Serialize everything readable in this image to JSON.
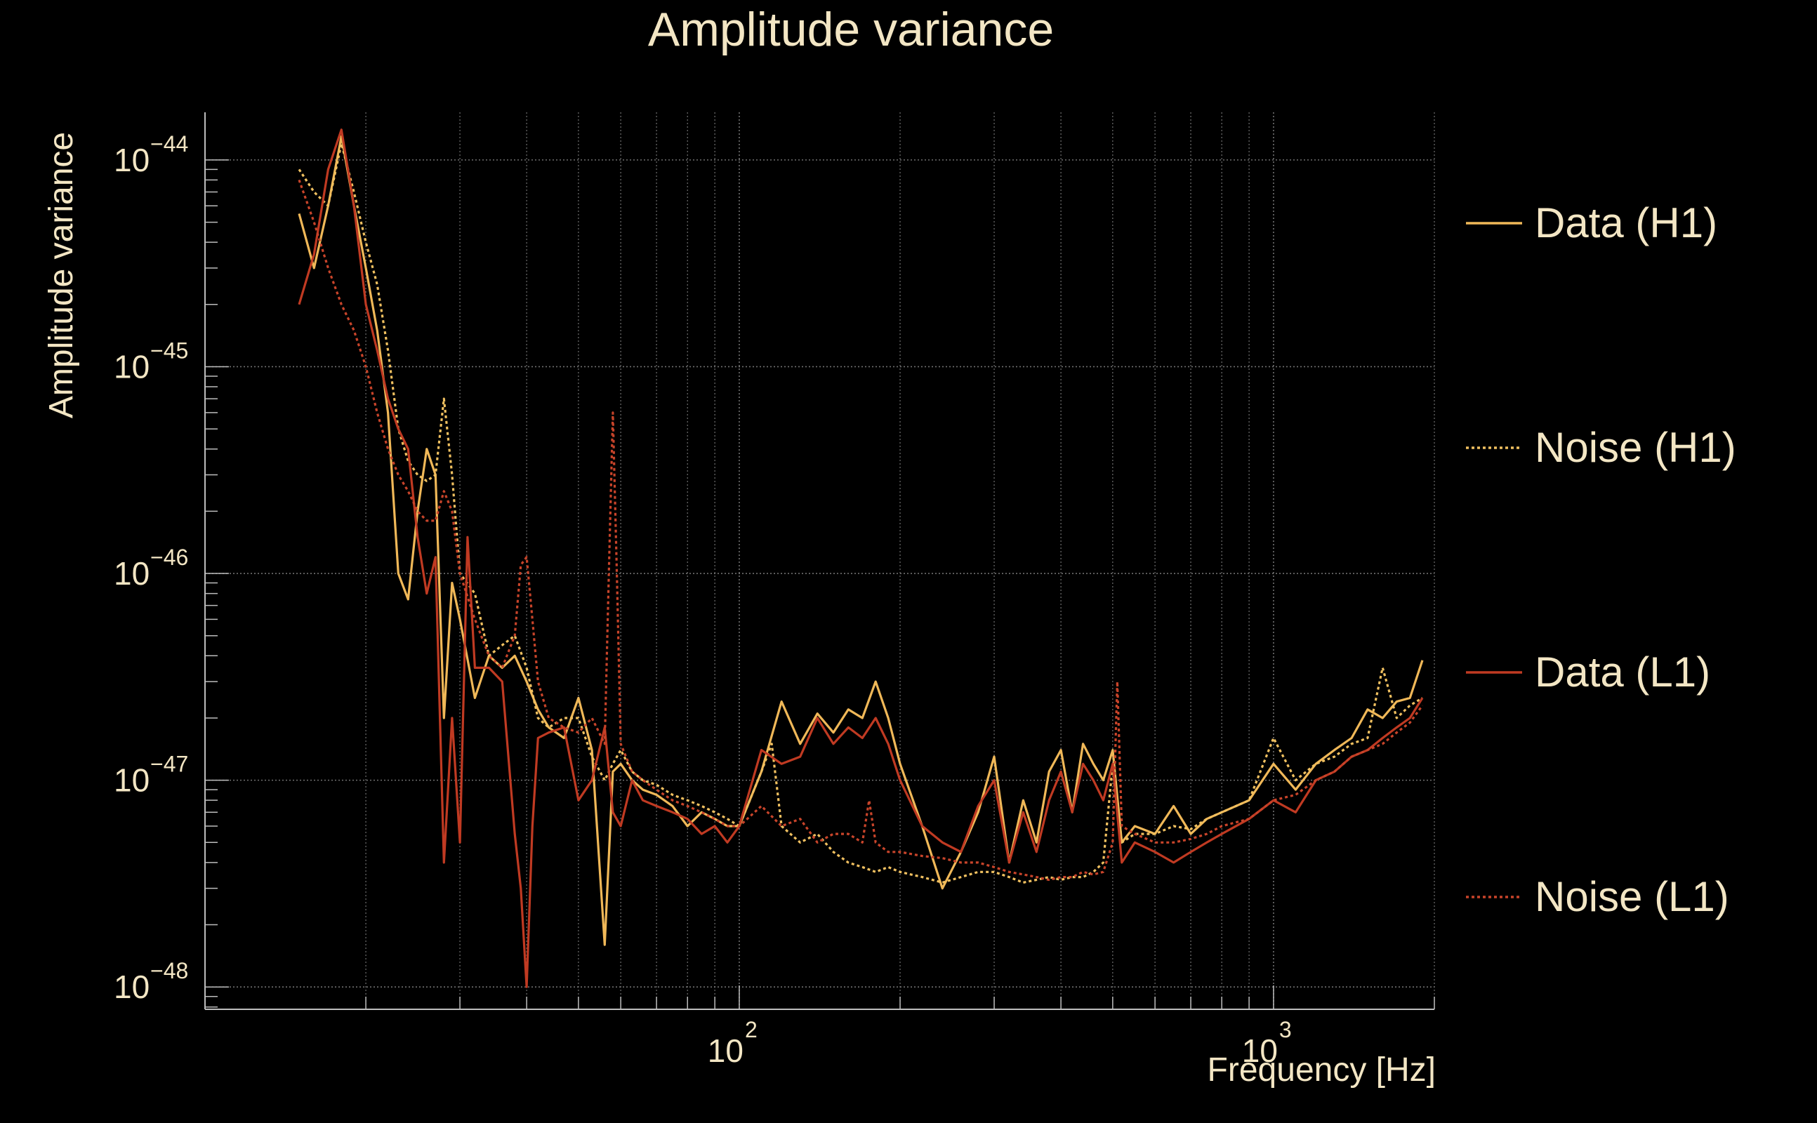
{
  "chart_data": {
    "type": "line",
    "title": "Amplitude variance",
    "xlabel": "Frequency [Hz]",
    "ylabel": "Amplitude variance",
    "x_scale": "log",
    "y_scale": "log",
    "xlim": [
      10,
      2000
    ],
    "ylim": [
      7.8e-49,
      1.7e-44
    ],
    "grid": true,
    "legend_placement": "right",
    "x_major_ticks": [
      {
        "value": 100,
        "base": "10",
        "exp": "2"
      },
      {
        "value": 1000,
        "base": "10",
        "exp": "3"
      }
    ],
    "y_major_ticks": [
      {
        "value": 1e-44,
        "base": "10",
        "exp": "−44"
      },
      {
        "value": 1e-45,
        "base": "10",
        "exp": "−45"
      },
      {
        "value": 1e-46,
        "base": "10",
        "exp": "−46"
      },
      {
        "value": 1e-47,
        "base": "10",
        "exp": "−47"
      },
      {
        "value": 1e-48,
        "base": "10",
        "exp": "−48"
      }
    ],
    "colors": {
      "background": "#000000",
      "text": "#f3e6c4",
      "grid": "#8c8c8c",
      "axis": "#bdbdbd"
    },
    "series": [
      {
        "name": "Data (H1)",
        "color": "#f0b858",
        "style": "solid",
        "x": [
          15,
          16,
          17,
          18,
          19,
          20,
          21,
          22,
          23,
          24,
          25,
          26,
          27,
          28,
          29,
          30,
          32,
          34,
          36,
          38,
          40,
          42,
          44,
          47,
          50,
          53,
          56,
          58,
          60,
          63,
          66,
          70,
          75,
          80,
          85,
          90,
          95,
          100,
          110,
          120,
          130,
          140,
          150,
          160,
          170,
          180,
          190,
          200,
          220,
          240,
          260,
          280,
          300,
          320,
          340,
          360,
          380,
          400,
          420,
          440,
          460,
          480,
          500,
          520,
          550,
          600,
          650,
          700,
          750,
          800,
          900,
          1000,
          1100,
          1200,
          1300,
          1400,
          1500,
          1600,
          1700,
          1800,
          1900
        ],
        "y": [
          5.5e-45,
          3e-45,
          6e-45,
          1.3e-44,
          6e-45,
          3e-45,
          1.5e-45,
          6e-46,
          1e-46,
          7.5e-47,
          2e-46,
          4e-46,
          3e-46,
          2e-47,
          9e-47,
          6e-47,
          2.5e-47,
          4e-47,
          3.5e-47,
          4e-47,
          3e-47,
          2.2e-47,
          1.8e-47,
          1.6e-47,
          2.5e-47,
          1.4e-47,
          1.6e-48,
          1.1e-47,
          1.2e-47,
          1e-47,
          9e-48,
          8.5e-48,
          7.5e-48,
          6e-48,
          7e-48,
          6.5e-48,
          6e-48,
          6e-48,
          1.1e-47,
          2.4e-47,
          1.5e-47,
          2.1e-47,
          1.7e-47,
          2.2e-47,
          2e-47,
          3e-47,
          2e-47,
          1.2e-47,
          6e-48,
          3e-48,
          4.5e-48,
          7e-48,
          1.3e-47,
          4e-48,
          8e-48,
          5e-48,
          1.1e-47,
          1.4e-47,
          7e-48,
          1.5e-47,
          1.2e-47,
          1e-47,
          1.4e-47,
          5e-48,
          6e-48,
          5.5e-48,
          7.5e-48,
          5.5e-48,
          6.5e-48,
          7e-48,
          8e-48,
          1.2e-47,
          9e-48,
          1.2e-47,
          1.4e-47,
          1.6e-47,
          2.2e-47,
          2e-47,
          2.4e-47,
          2.5e-47,
          3.8e-47
        ]
      },
      {
        "name": "Noise (H1)",
        "color": "#f0c060",
        "style": "dotted",
        "x": [
          15,
          16,
          17,
          18,
          19,
          20,
          21,
          22,
          23,
          24,
          25,
          26,
          27,
          28,
          29,
          30,
          32,
          34,
          36,
          38,
          40,
          42,
          44,
          47,
          50,
          53,
          56,
          58,
          60,
          63,
          66,
          70,
          75,
          80,
          85,
          90,
          95,
          100,
          110,
          115,
          120,
          130,
          140,
          150,
          160,
          170,
          180,
          190,
          200,
          220,
          240,
          260,
          280,
          300,
          320,
          340,
          360,
          380,
          400,
          420,
          440,
          460,
          480,
          500,
          520,
          550,
          600,
          650,
          700,
          750,
          800,
          900,
          1000,
          1100,
          1200,
          1300,
          1400,
          1500,
          1600,
          1700,
          1800,
          1900
        ],
        "y": [
          9e-45,
          7e-45,
          6e-45,
          1.2e-44,
          7e-45,
          4e-45,
          2.5e-45,
          1.2e-45,
          5e-46,
          3.5e-46,
          3e-46,
          2.8e-46,
          3e-46,
          7e-46,
          3e-46,
          1e-46,
          8e-47,
          4e-47,
          4.5e-47,
          5e-47,
          3.5e-47,
          2e-47,
          1.8e-47,
          2e-47,
          2e-47,
          1.3e-47,
          1e-47,
          1.2e-47,
          1.4e-47,
          1.1e-47,
          1e-47,
          9.5e-48,
          8.5e-48,
          8e-48,
          7.5e-48,
          7e-48,
          6.5e-48,
          6e-48,
          1.1e-47,
          1.5e-47,
          6e-48,
          5e-48,
          5.5e-48,
          4.5e-48,
          4e-48,
          3.8e-48,
          3.6e-48,
          3.8e-48,
          3.6e-48,
          3.4e-48,
          3.2e-48,
          3.4e-48,
          3.6e-48,
          3.6e-48,
          3.4e-48,
          3.2e-48,
          3.3e-48,
          3.4e-48,
          3.3e-48,
          3.4e-48,
          3.4e-48,
          3.6e-48,
          4e-48,
          1.2e-47,
          5e-48,
          5.5e-48,
          5.5e-48,
          6e-48,
          5.8e-48,
          6.5e-48,
          7e-48,
          8e-48,
          1.6e-47,
          1e-47,
          1.2e-47,
          1.3e-47,
          1.5e-47,
          1.6e-47,
          3.5e-47,
          2e-47,
          2.3e-47,
          2.5e-47
        ]
      },
      {
        "name": "Data (L1)",
        "color": "#c03a22",
        "style": "solid",
        "x": [
          15,
          16,
          17,
          18,
          19,
          20,
          21,
          22,
          23,
          24,
          25,
          26,
          27,
          28,
          29,
          30,
          31,
          32,
          34,
          36,
          38,
          39,
          40,
          41,
          42,
          44,
          47,
          50,
          53,
          56,
          58,
          60,
          63,
          66,
          70,
          75,
          80,
          85,
          90,
          95,
          100,
          110,
          120,
          130,
          140,
          150,
          160,
          170,
          180,
          190,
          200,
          220,
          240,
          260,
          280,
          300,
          320,
          340,
          360,
          380,
          400,
          420,
          440,
          460,
          480,
          500,
          520,
          550,
          600,
          650,
          700,
          750,
          800,
          900,
          1000,
          1100,
          1200,
          1300,
          1400,
          1500,
          1600,
          1700,
          1800,
          1900
        ],
        "y": [
          2e-45,
          3.5e-45,
          9e-45,
          1.4e-44,
          6e-45,
          2e-45,
          1.2e-45,
          7e-46,
          5e-46,
          4e-46,
          1.5e-46,
          8e-47,
          1.2e-46,
          4e-48,
          2e-47,
          5e-48,
          1.5e-46,
          3.5e-47,
          3.5e-47,
          3e-47,
          5.5e-48,
          3e-48,
          1e-48,
          6e-48,
          1.6e-47,
          1.7e-47,
          1.8e-47,
          8e-48,
          1e-47,
          1.8e-47,
          7e-48,
          6e-48,
          1e-47,
          8e-48,
          7.5e-48,
          7e-48,
          6.5e-48,
          5.5e-48,
          6e-48,
          5e-48,
          6e-48,
          1.4e-47,
          1.2e-47,
          1.3e-47,
          2e-47,
          1.5e-47,
          1.8e-47,
          1.6e-47,
          2e-47,
          1.5e-47,
          1e-47,
          6e-48,
          5e-48,
          4.5e-48,
          7.5e-48,
          1e-47,
          4e-48,
          7e-48,
          4.5e-48,
          8e-48,
          1.1e-47,
          7e-48,
          1.2e-47,
          1e-47,
          8e-48,
          1.2e-47,
          4e-48,
          5e-48,
          4.5e-48,
          4e-48,
          4.5e-48,
          5e-48,
          5.5e-48,
          6.5e-48,
          8e-48,
          7e-48,
          1e-47,
          1.1e-47,
          1.3e-47,
          1.4e-47,
          1.6e-47,
          1.8e-47,
          2e-47,
          2.5e-47
        ]
      },
      {
        "name": "Noise (L1)",
        "color": "#c8442a",
        "style": "dotted",
        "x": [
          15,
          16,
          17,
          18,
          19,
          20,
          21,
          22,
          23,
          24,
          25,
          26,
          27,
          28,
          29,
          30,
          32,
          34,
          36,
          38,
          39,
          40,
          41,
          42,
          44,
          47,
          50,
          53,
          56,
          57,
          58,
          59,
          60,
          63,
          66,
          70,
          75,
          80,
          85,
          90,
          95,
          100,
          110,
          120,
          130,
          140,
          150,
          160,
          170,
          175,
          180,
          190,
          200,
          220,
          240,
          260,
          280,
          300,
          320,
          340,
          360,
          380,
          400,
          420,
          440,
          460,
          480,
          500,
          510,
          520,
          550,
          600,
          650,
          700,
          750,
          800,
          900,
          1000,
          1100,
          1200,
          1300,
          1400,
          1500,
          1600,
          1700,
          1800,
          1900
        ],
        "y": [
          8e-45,
          5e-45,
          3e-45,
          2e-45,
          1.5e-45,
          1e-45,
          6e-46,
          4e-46,
          3e-46,
          2.5e-46,
          2e-46,
          1.8e-46,
          1.8e-46,
          2.5e-46,
          2e-46,
          1e-46,
          6e-47,
          4e-47,
          3.5e-47,
          5e-47,
          1.1e-46,
          1.2e-46,
          6e-47,
          3e-47,
          2e-47,
          1.8e-47,
          1.7e-47,
          2e-47,
          1.5e-47,
          1e-46,
          6e-46,
          1e-46,
          1.5e-47,
          1.1e-47,
          1e-47,
          9e-48,
          8e-48,
          7.5e-48,
          7e-48,
          6.5e-48,
          6e-48,
          6e-48,
          7.5e-48,
          6e-48,
          6.5e-48,
          5e-48,
          5.5e-48,
          5.5e-48,
          5e-48,
          8e-48,
          5e-48,
          4.5e-48,
          4.5e-48,
          4.3e-48,
          4.2e-48,
          4e-48,
          4e-48,
          3.8e-48,
          3.6e-48,
          3.5e-48,
          3.4e-48,
          3.3e-48,
          3.4e-48,
          3.4e-48,
          3.6e-48,
          3.5e-48,
          3.6e-48,
          5e-48,
          3e-47,
          6e-48,
          5.5e-48,
          5e-48,
          5e-48,
          5.2e-48,
          5.5e-48,
          6e-48,
          6.5e-48,
          8e-48,
          8.5e-48,
          1e-47,
          1.1e-47,
          1.3e-47,
          1.4e-47,
          1.5e-47,
          1.7e-47,
          1.9e-47,
          2.3e-47
        ]
      }
    ]
  }
}
